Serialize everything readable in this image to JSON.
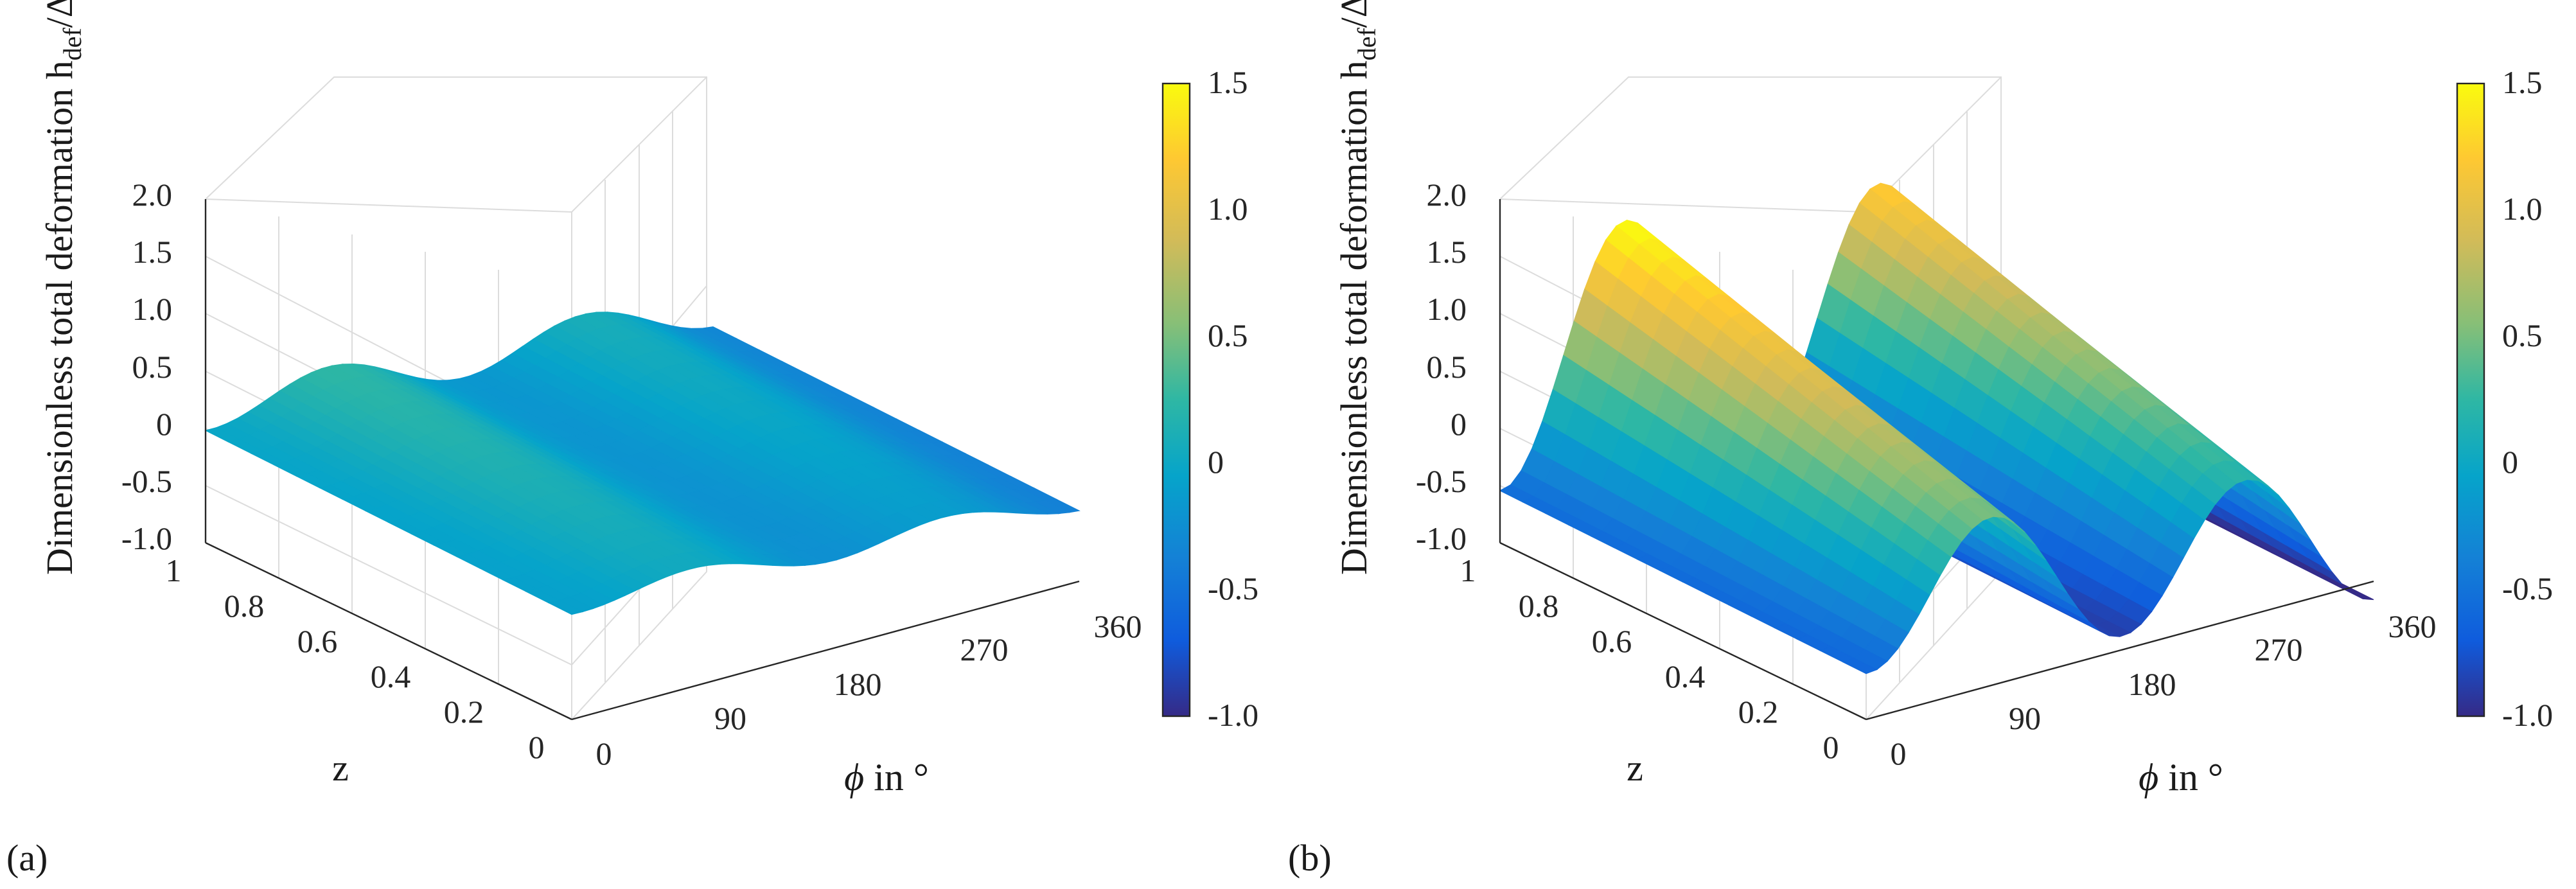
{
  "chart_data": [
    {
      "type": "surface3d",
      "panel_label": "(a)",
      "zlabel_main": "Dimensionless total deformation h",
      "zlabel_sub": "def",
      "zlabel_tail": "/ΔR",
      "xlabel_symbol": "ϕ",
      "xlabel_rest": " in °",
      "ylabel": "z",
      "x_ticks": [
        "0",
        "90",
        "180",
        "270",
        "360"
      ],
      "y_ticks": [
        "0",
        "0.2",
        "0.4",
        "0.6",
        "0.8",
        "1"
      ],
      "z_ticks": [
        "-1.0",
        "-0.5",
        "0",
        "0.5",
        "1.0",
        "1.5",
        "2.0"
      ],
      "x_range": [
        0,
        360
      ],
      "y_range": [
        0,
        1
      ],
      "z_range": [
        -1.0,
        2.0
      ],
      "surface": {
        "amp": 0.17,
        "periods": 2,
        "phase_deg": -90,
        "trend": [
          0.08,
          -0.22
        ],
        "z_slope": 0.14
      },
      "colorbar": {
        "range": [
          -1.0,
          1.5
        ],
        "ticks": [
          "-1.0",
          "-0.5",
          "0",
          "0.5",
          "1.0",
          "1.5"
        ]
      }
    },
    {
      "type": "surface3d",
      "panel_label": "(b)",
      "zlabel_main": "Dimensionless total deformation h",
      "zlabel_sub": "def",
      "zlabel_tail": "/ΔR",
      "xlabel_symbol": "ϕ",
      "xlabel_rest": " in °",
      "ylabel": "z",
      "x_ticks": [
        "0",
        "90",
        "180",
        "270",
        "360"
      ],
      "y_ticks": [
        "0",
        "0.2",
        "0.4",
        "0.6",
        "0.8",
        "1"
      ],
      "z_ticks": [
        "-1.0",
        "-0.5",
        "0",
        "0.5",
        "1.0",
        "1.5",
        "2.0"
      ],
      "x_range": [
        0,
        360
      ],
      "y_range": [
        0,
        1
      ],
      "z_range": [
        -1.0,
        2.0
      ],
      "surface": {
        "amp": 1.1,
        "periods": 2,
        "phase_deg": -90,
        "trend": [
          0.28,
          -0.28
        ],
        "z_slope": 0.55
      },
      "colorbar": {
        "range": [
          -1.0,
          1.5
        ],
        "ticks": [
          "-1.0",
          "-0.5",
          "0",
          "0.5",
          "1.0",
          "1.5"
        ]
      }
    }
  ]
}
